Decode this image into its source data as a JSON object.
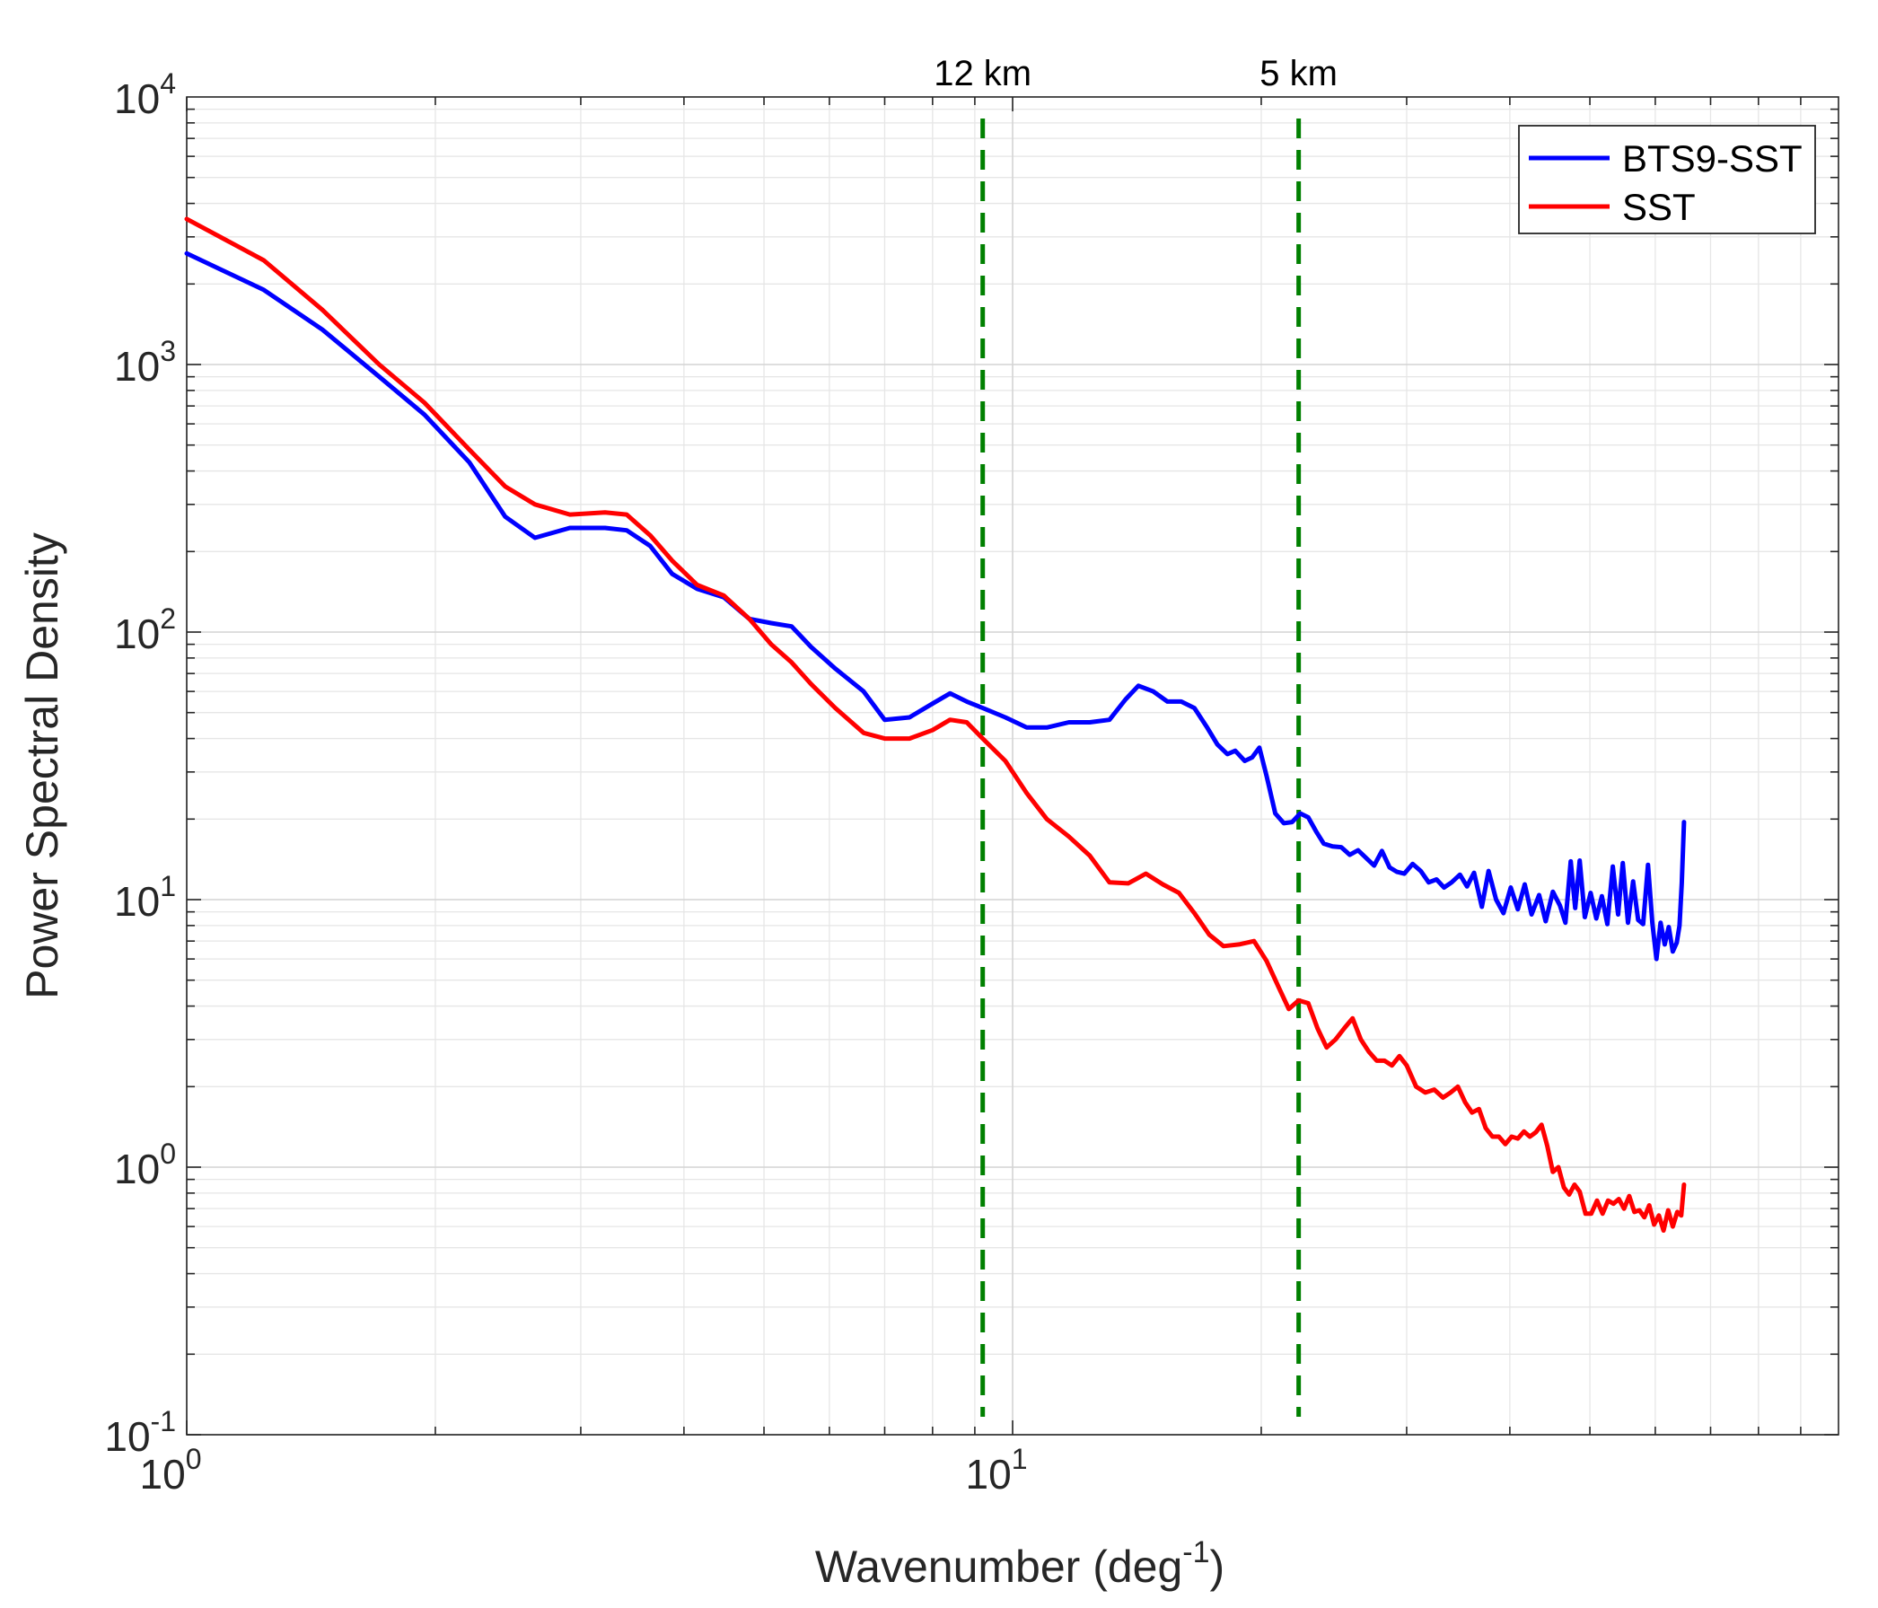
{
  "chart_data": {
    "type": "line",
    "x_scale": "log",
    "y_scale": "log",
    "xlim": [
      1,
      100
    ],
    "ylim": [
      0.1,
      10000
    ],
    "grid": true,
    "xlabel": "Wavenumber (deg",
    "xlabel_sup": "-1",
    "xlabel_close": ")",
    "ylabel": "Power Spectral Density",
    "x_ticks": [
      {
        "value": 1,
        "base": "10",
        "exp": "0"
      },
      {
        "value": 10,
        "base": "10",
        "exp": "1"
      }
    ],
    "y_ticks": [
      {
        "value": 0.1,
        "base": "10",
        "exp": "-1"
      },
      {
        "value": 1,
        "base": "10",
        "exp": "0"
      },
      {
        "value": 10,
        "base": "10",
        "exp": "1"
      },
      {
        "value": 100,
        "base": "10",
        "exp": "2"
      },
      {
        "value": 1000,
        "base": "10",
        "exp": "3"
      },
      {
        "value": 10000,
        "base": "10",
        "exp": "4"
      }
    ],
    "vlines": [
      {
        "x": 9.2,
        "label": "12 km",
        "color": "#008000"
      },
      {
        "x": 22.2,
        "label": "5 km",
        "color": "#008000"
      }
    ],
    "legend_position": "top-right",
    "series": [
      {
        "name": "BTS9-SST",
        "color": "#0000ff",
        "points": [
          [
            1.0,
            2600
          ],
          [
            1.24,
            1900
          ],
          [
            1.46,
            1350
          ],
          [
            1.71,
            900
          ],
          [
            1.94,
            650
          ],
          [
            2.2,
            430
          ],
          [
            2.43,
            270
          ],
          [
            2.64,
            225
          ],
          [
            2.91,
            245
          ],
          [
            3.21,
            245
          ],
          [
            3.41,
            240
          ],
          [
            3.64,
            210
          ],
          [
            3.87,
            165
          ],
          [
            4.15,
            145
          ],
          [
            4.47,
            135
          ],
          [
            4.8,
            112
          ],
          [
            5.1,
            108
          ],
          [
            5.4,
            105
          ],
          [
            5.7,
            88
          ],
          [
            6.1,
            73
          ],
          [
            6.6,
            60
          ],
          [
            7.0,
            47
          ],
          [
            7.5,
            48
          ],
          [
            8.0,
            54
          ],
          [
            8.4,
            59
          ],
          [
            8.8,
            55
          ],
          [
            9.2,
            52
          ],
          [
            9.8,
            48
          ],
          [
            10.4,
            44
          ],
          [
            11.0,
            44
          ],
          [
            11.7,
            46
          ],
          [
            12.4,
            46
          ],
          [
            13.1,
            47
          ],
          [
            13.7,
            56
          ],
          [
            14.2,
            63
          ],
          [
            14.8,
            60
          ],
          [
            15.4,
            55
          ],
          [
            16.0,
            55
          ],
          [
            16.6,
            52
          ],
          [
            17.2,
            44
          ],
          [
            17.7,
            38
          ],
          [
            18.2,
            35
          ],
          [
            18.6,
            36
          ],
          [
            19.1,
            33
          ],
          [
            19.5,
            34
          ],
          [
            19.9,
            37
          ],
          [
            20.3,
            29
          ],
          [
            20.8,
            21
          ],
          [
            21.3,
            19.3
          ],
          [
            21.8,
            19.5
          ],
          [
            22.3,
            21
          ],
          [
            22.8,
            20.3
          ],
          [
            23.3,
            18
          ],
          [
            23.8,
            16.2
          ],
          [
            24.4,
            15.8
          ],
          [
            25.0,
            15.7
          ],
          [
            25.6,
            14.7
          ],
          [
            26.2,
            15.3
          ],
          [
            26.8,
            14.3
          ],
          [
            27.4,
            13.4
          ],
          [
            28.0,
            15.2
          ],
          [
            28.6,
            13.2
          ],
          [
            29.2,
            12.7
          ],
          [
            29.8,
            12.5
          ],
          [
            30.5,
            13.6
          ],
          [
            31.2,
            12.8
          ],
          [
            31.9,
            11.6
          ],
          [
            32.6,
            11.9
          ],
          [
            33.3,
            11.1
          ],
          [
            34.0,
            11.6
          ],
          [
            34.8,
            12.4
          ],
          [
            35.5,
            11.2
          ],
          [
            36.2,
            12.6
          ],
          [
            37.0,
            9.4
          ],
          [
            37.7,
            12.8
          ],
          [
            38.5,
            10.0
          ],
          [
            39.3,
            8.9
          ],
          [
            40.1,
            11.1
          ],
          [
            40.9,
            9.2
          ],
          [
            41.7,
            11.4
          ],
          [
            42.5,
            8.8
          ],
          [
            43.4,
            10.4
          ],
          [
            44.2,
            8.3
          ],
          [
            45.1,
            10.7
          ],
          [
            46.0,
            9.5
          ],
          [
            46.7,
            8.2
          ],
          [
            47.4,
            13.9
          ],
          [
            48.0,
            9.3
          ],
          [
            48.6,
            14.0
          ],
          [
            49.3,
            8.6
          ],
          [
            50.1,
            10.6
          ],
          [
            50.9,
            8.5
          ],
          [
            51.7,
            10.3
          ],
          [
            52.5,
            8.1
          ],
          [
            53.3,
            13.3
          ],
          [
            54.1,
            8.8
          ],
          [
            54.8,
            13.7
          ],
          [
            55.6,
            8.2
          ],
          [
            56.4,
            11.7
          ],
          [
            57.2,
            8.4
          ],
          [
            58.0,
            8.1
          ],
          [
            58.8,
            13.5
          ],
          [
            59.5,
            8.2
          ],
          [
            60.2,
            6.0
          ],
          [
            60.9,
            8.2
          ],
          [
            61.6,
            6.8
          ],
          [
            62.3,
            7.9
          ],
          [
            63.0,
            6.4
          ],
          [
            63.7,
            6.9
          ],
          [
            64.2,
            8.0
          ],
          [
            64.6,
            11.5
          ],
          [
            65.0,
            19.5
          ]
        ]
      },
      {
        "name": "SST",
        "color": "#ff0000",
        "points": [
          [
            1.0,
            3500
          ],
          [
            1.24,
            2450
          ],
          [
            1.46,
            1600
          ],
          [
            1.71,
            1000
          ],
          [
            1.94,
            720
          ],
          [
            2.2,
            480
          ],
          [
            2.43,
            350
          ],
          [
            2.64,
            300
          ],
          [
            2.91,
            275
          ],
          [
            3.21,
            280
          ],
          [
            3.41,
            275
          ],
          [
            3.64,
            230
          ],
          [
            3.87,
            185
          ],
          [
            4.15,
            150
          ],
          [
            4.47,
            137
          ],
          [
            4.8,
            112
          ],
          [
            5.1,
            90
          ],
          [
            5.4,
            77
          ],
          [
            5.7,
            64
          ],
          [
            6.1,
            52
          ],
          [
            6.6,
            42
          ],
          [
            7.0,
            40
          ],
          [
            7.5,
            40
          ],
          [
            8.0,
            43
          ],
          [
            8.4,
            47
          ],
          [
            8.8,
            46
          ],
          [
            9.2,
            40
          ],
          [
            9.8,
            33
          ],
          [
            10.4,
            25
          ],
          [
            11.0,
            20
          ],
          [
            11.7,
            17.2
          ],
          [
            12.4,
            14.6
          ],
          [
            13.1,
            11.6
          ],
          [
            13.8,
            11.5
          ],
          [
            14.5,
            12.5
          ],
          [
            15.2,
            11.4
          ],
          [
            15.9,
            10.6
          ],
          [
            16.6,
            8.9
          ],
          [
            17.3,
            7.4
          ],
          [
            18.0,
            6.7
          ],
          [
            18.8,
            6.8
          ],
          [
            19.6,
            7.0
          ],
          [
            20.3,
            5.9
          ],
          [
            21.0,
            4.7
          ],
          [
            21.6,
            3.9
          ],
          [
            22.2,
            4.2
          ],
          [
            22.8,
            4.1
          ],
          [
            23.4,
            3.3
          ],
          [
            24.0,
            2.8
          ],
          [
            24.6,
            3.0
          ],
          [
            25.2,
            3.3
          ],
          [
            25.8,
            3.6
          ],
          [
            26.4,
            3.0
          ],
          [
            27.0,
            2.7
          ],
          [
            27.6,
            2.5
          ],
          [
            28.2,
            2.5
          ],
          [
            28.8,
            2.4
          ],
          [
            29.4,
            2.6
          ],
          [
            30.0,
            2.4
          ],
          [
            30.8,
            2.0
          ],
          [
            31.6,
            1.9
          ],
          [
            32.4,
            1.95
          ],
          [
            33.2,
            1.82
          ],
          [
            33.9,
            1.9
          ],
          [
            34.6,
            2.0
          ],
          [
            35.3,
            1.75
          ],
          [
            36.0,
            1.6
          ],
          [
            36.7,
            1.65
          ],
          [
            37.4,
            1.4
          ],
          [
            38.1,
            1.3
          ],
          [
            38.8,
            1.3
          ],
          [
            39.5,
            1.22
          ],
          [
            40.2,
            1.3
          ],
          [
            40.9,
            1.28
          ],
          [
            41.6,
            1.36
          ],
          [
            42.3,
            1.3
          ],
          [
            43.0,
            1.35
          ],
          [
            43.7,
            1.44
          ],
          [
            44.4,
            1.2
          ],
          [
            45.1,
            0.96
          ],
          [
            45.8,
            1.0
          ],
          [
            46.5,
            0.84
          ],
          [
            47.2,
            0.79
          ],
          [
            47.9,
            0.86
          ],
          [
            48.6,
            0.81
          ],
          [
            49.4,
            0.67
          ],
          [
            50.2,
            0.67
          ],
          [
            51.0,
            0.75
          ],
          [
            51.8,
            0.67
          ],
          [
            52.6,
            0.75
          ],
          [
            53.4,
            0.73
          ],
          [
            54.2,
            0.76
          ],
          [
            55.0,
            0.7
          ],
          [
            55.8,
            0.78
          ],
          [
            56.6,
            0.68
          ],
          [
            57.4,
            0.69
          ],
          [
            58.2,
            0.65
          ],
          [
            59.0,
            0.72
          ],
          [
            59.8,
            0.61
          ],
          [
            60.6,
            0.66
          ],
          [
            61.4,
            0.58
          ],
          [
            62.2,
            0.69
          ],
          [
            63.0,
            0.6
          ],
          [
            63.8,
            0.68
          ],
          [
            64.5,
            0.66
          ],
          [
            65.0,
            0.86
          ]
        ]
      }
    ]
  }
}
